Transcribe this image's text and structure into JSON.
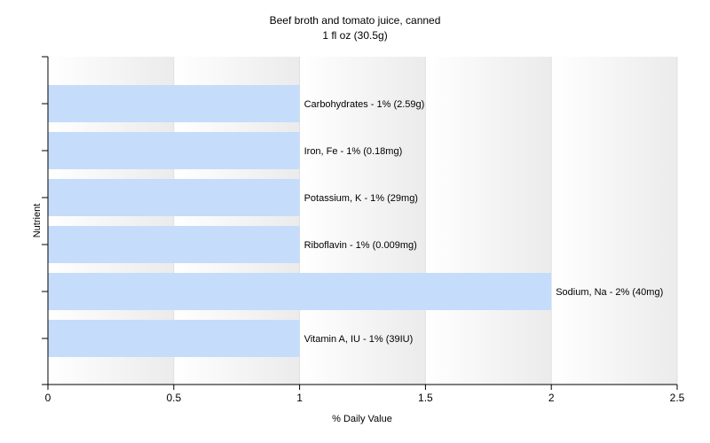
{
  "chart_data": {
    "type": "bar",
    "orientation": "horizontal",
    "title": "Beef broth and tomato juice, canned",
    "subtitle": "1 fl oz (30.5g)",
    "xlabel": "% Daily Value",
    "ylabel": "Nutrient",
    "xlim": [
      0,
      2.5
    ],
    "xticks": [
      "0",
      "0.5",
      "1",
      "1.5",
      "2",
      "2.5"
    ],
    "grid": true,
    "bar_color": "#c5dcfb",
    "categories": [
      "Carbohydrates",
      "Iron, Fe",
      "Potassium, K",
      "Riboflavin",
      "Sodium, Na",
      "Vitamin A, IU"
    ],
    "values": [
      1,
      1,
      1,
      1,
      2,
      1
    ],
    "bar_labels": [
      "Carbohydrates - 1% (2.59g)",
      "Iron, Fe - 1% (0.18mg)",
      "Potassium, K - 1% (29mg)",
      "Riboflavin - 1% (0.009mg)",
      "Sodium, Na - 2% (40mg)",
      "Vitamin A, IU - 1% (39IU)"
    ]
  }
}
